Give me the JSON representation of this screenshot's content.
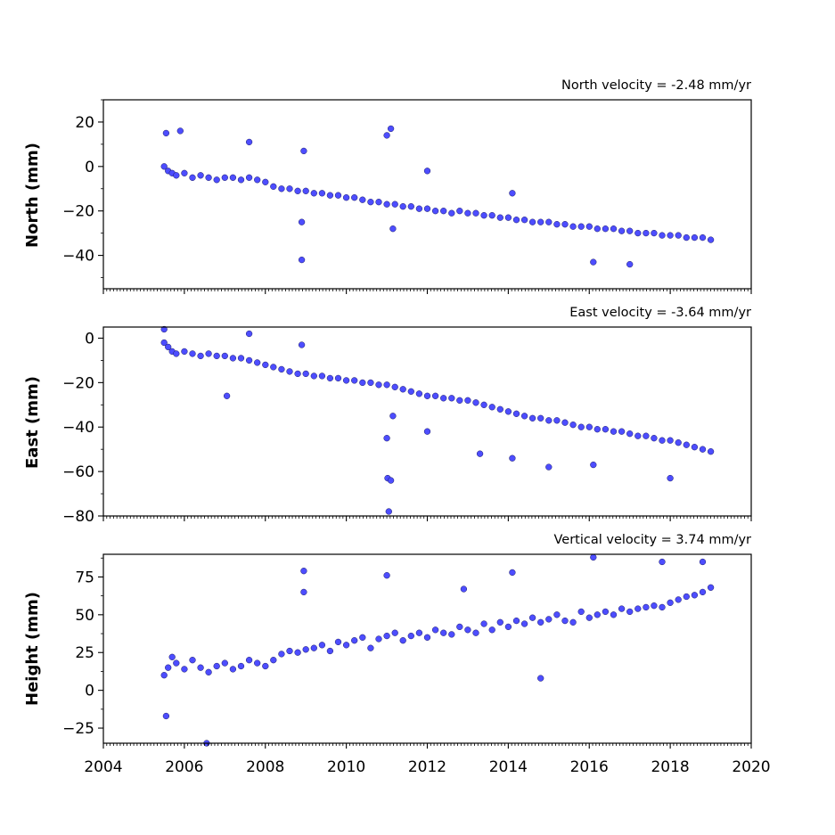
{
  "chart_data": [
    {
      "type": "scatter",
      "title": "North velocity = -2.48 mm/yr",
      "ylabel": "North (mm)",
      "xlim": [
        2004,
        2020
      ],
      "ylim": [
        -55,
        30
      ],
      "x_ticks": [
        2004,
        2006,
        2008,
        2010,
        2012,
        2014,
        2016,
        2018,
        2020
      ],
      "y_ticks": [
        20,
        0,
        -20,
        -40
      ],
      "y_tick_labels": [
        "20",
        "0",
        "−20",
        "−40"
      ],
      "color": "#4d4dff",
      "series": [
        {
          "x": [
            2005.5,
            2005.6,
            2005.7,
            2005.8,
            2006.0,
            2006.2,
            2006.4,
            2006.6,
            2006.8,
            2007.0,
            2007.2,
            2007.4,
            2007.6,
            2007.8,
            2008.0,
            2008.2,
            2008.4,
            2008.6,
            2008.8,
            2009.0,
            2009.2,
            2009.4,
            2009.6,
            2009.8,
            2010.0,
            2010.2,
            2010.4,
            2010.6,
            2010.8,
            2011.0,
            2011.2,
            2011.4,
            2011.6,
            2011.8,
            2012.0,
            2012.2,
            2012.4,
            2012.6,
            2012.8,
            2013.0,
            2013.2,
            2013.4,
            2013.6,
            2013.8,
            2014.0,
            2014.2,
            2014.4,
            2014.6,
            2014.8,
            2015.0,
            2015.2,
            2015.4,
            2015.6,
            2015.8,
            2016.0,
            2016.2,
            2016.4,
            2016.6,
            2016.8,
            2017.0,
            2017.2,
            2017.4,
            2017.6,
            2017.8,
            2018.0,
            2018.2,
            2018.4,
            2018.6,
            2018.8,
            2019.0,
            2005.55,
            2005.9,
            2007.6,
            2008.9,
            2008.9,
            2008.95,
            2011.0,
            2011.1,
            2011.15,
            2012.0,
            2014.1,
            2016.1,
            2017.0
          ],
          "y": [
            0,
            -2,
            -3,
            -4,
            -3,
            -5,
            -4,
            -5,
            -6,
            -5,
            -5,
            -6,
            -5,
            -6,
            -7,
            -9,
            -10,
            -10,
            -11,
            -11,
            -12,
            -12,
            -13,
            -13,
            -14,
            -14,
            -15,
            -16,
            -16,
            -17,
            -17,
            -18,
            -18,
            -19,
            -19,
            -20,
            -20,
            -21,
            -20,
            -21,
            -21,
            -22,
            -22,
            -23,
            -23,
            -24,
            -24,
            -25,
            -25,
            -25,
            -26,
            -26,
            -27,
            -27,
            -27,
            -28,
            -28,
            -28,
            -29,
            -29,
            -30,
            -30,
            -30,
            -31,
            -31,
            -31,
            -32,
            -32,
            -32,
            -33,
            15,
            16,
            11,
            -25,
            -42,
            7,
            14,
            17,
            -28,
            -2,
            -12,
            -43,
            -44
          ]
        }
      ]
    },
    {
      "type": "scatter",
      "title": "East velocity = -3.64 mm/yr",
      "ylabel": "East (mm)",
      "xlim": [
        2004,
        2020
      ],
      "ylim": [
        -80,
        5
      ],
      "x_ticks": [
        2004,
        2006,
        2008,
        2010,
        2012,
        2014,
        2016,
        2018,
        2020
      ],
      "y_ticks": [
        0,
        -20,
        -40,
        -60,
        -80
      ],
      "y_tick_labels": [
        "0",
        "−20",
        "−40",
        "−60",
        "−80"
      ],
      "color": "#4d4dff",
      "series": [
        {
          "x": [
            2005.5,
            2005.6,
            2005.7,
            2005.8,
            2006.0,
            2006.2,
            2006.4,
            2006.6,
            2006.8,
            2007.0,
            2007.2,
            2007.4,
            2007.6,
            2007.8,
            2008.0,
            2008.2,
            2008.4,
            2008.6,
            2008.8,
            2009.0,
            2009.2,
            2009.4,
            2009.6,
            2009.8,
            2010.0,
            2010.2,
            2010.4,
            2010.6,
            2010.8,
            2011.0,
            2011.2,
            2011.4,
            2011.6,
            2011.8,
            2012.0,
            2012.2,
            2012.4,
            2012.6,
            2012.8,
            2013.0,
            2013.2,
            2013.4,
            2013.6,
            2013.8,
            2014.0,
            2014.2,
            2014.4,
            2014.6,
            2014.8,
            2015.0,
            2015.2,
            2015.4,
            2015.6,
            2015.8,
            2016.0,
            2016.2,
            2016.4,
            2016.6,
            2016.8,
            2017.0,
            2017.2,
            2017.4,
            2017.6,
            2017.8,
            2018.0,
            2018.2,
            2018.4,
            2018.6,
            2018.8,
            2019.0,
            2005.5,
            2007.05,
            2007.6,
            2008.9,
            2011.0,
            2011.02,
            2011.05,
            2011.1,
            2011.15,
            2012.0,
            2013.3,
            2014.1,
            2015.0,
            2016.1,
            2018.0
          ],
          "y": [
            -2,
            -4,
            -6,
            -7,
            -6,
            -7,
            -8,
            -7,
            -8,
            -8,
            -9,
            -9,
            -10,
            -11,
            -12,
            -13,
            -14,
            -15,
            -16,
            -16,
            -17,
            -17,
            -18,
            -18,
            -19,
            -19,
            -20,
            -20,
            -21,
            -21,
            -22,
            -23,
            -24,
            -25,
            -26,
            -26,
            -27,
            -27,
            -28,
            -28,
            -29,
            -30,
            -31,
            -32,
            -33,
            -34,
            -35,
            -36,
            -36,
            -37,
            -37,
            -38,
            -39,
            -40,
            -40,
            -41,
            -41,
            -42,
            -42,
            -43,
            -44,
            -44,
            -45,
            -46,
            -46,
            -47,
            -48,
            -49,
            -50,
            -51,
            4,
            -26,
            2,
            -3,
            -45,
            -63,
            -78,
            -64,
            -35,
            -42,
            -52,
            -54,
            -58,
            -57,
            -63
          ]
        }
      ]
    },
    {
      "type": "scatter",
      "title": "Vertical velocity = 3.74 mm/yr",
      "ylabel": "Height (mm)",
      "xlim": [
        2004,
        2020
      ],
      "ylim": [
        -35,
        90
      ],
      "x_ticks": [
        2004,
        2006,
        2008,
        2010,
        2012,
        2014,
        2016,
        2018,
        2020
      ],
      "x_tick_labels": [
        "2004",
        "2006",
        "2008",
        "2010",
        "2012",
        "2014",
        "2016",
        "2018",
        "2020"
      ],
      "y_ticks": [
        75,
        50,
        25,
        0,
        -25
      ],
      "y_tick_labels": [
        "75",
        "50",
        "25",
        "0",
        "−25"
      ],
      "color": "#4d4dff",
      "series": [
        {
          "x": [
            2005.5,
            2005.6,
            2005.7,
            2005.8,
            2006.0,
            2006.2,
            2006.4,
            2006.6,
            2006.8,
            2007.0,
            2007.2,
            2007.4,
            2007.6,
            2007.8,
            2008.0,
            2008.2,
            2008.4,
            2008.6,
            2008.8,
            2009.0,
            2009.2,
            2009.4,
            2009.6,
            2009.8,
            2010.0,
            2010.2,
            2010.4,
            2010.6,
            2010.8,
            2011.0,
            2011.2,
            2011.4,
            2011.6,
            2011.8,
            2012.0,
            2012.2,
            2012.4,
            2012.6,
            2012.8,
            2013.0,
            2013.2,
            2013.4,
            2013.6,
            2013.8,
            2014.0,
            2014.2,
            2014.4,
            2014.6,
            2014.8,
            2015.0,
            2015.2,
            2015.4,
            2015.6,
            2015.8,
            2016.0,
            2016.2,
            2016.4,
            2016.6,
            2016.8,
            2017.0,
            2017.2,
            2017.4,
            2017.6,
            2017.8,
            2018.0,
            2018.2,
            2018.4,
            2018.6,
            2018.8,
            2019.0,
            2005.55,
            2006.55,
            2008.95,
            2008.95,
            2011.0,
            2012.9,
            2014.1,
            2014.8,
            2016.1,
            2017.8,
            2018.8
          ],
          "y": [
            10,
            15,
            22,
            18,
            14,
            20,
            15,
            12,
            16,
            18,
            14,
            16,
            20,
            18,
            16,
            20,
            24,
            26,
            25,
            27,
            28,
            30,
            26,
            32,
            30,
            33,
            35,
            28,
            34,
            36,
            38,
            33,
            36,
            38,
            35,
            40,
            38,
            37,
            42,
            40,
            38,
            44,
            40,
            45,
            42,
            46,
            44,
            48,
            45,
            47,
            50,
            46,
            45,
            52,
            48,
            50,
            52,
            50,
            54,
            52,
            54,
            55,
            56,
            55,
            58,
            60,
            62,
            63,
            65,
            68,
            -17,
            -35,
            79,
            65,
            76,
            67,
            78,
            8,
            88,
            85,
            85
          ]
        }
      ]
    }
  ]
}
